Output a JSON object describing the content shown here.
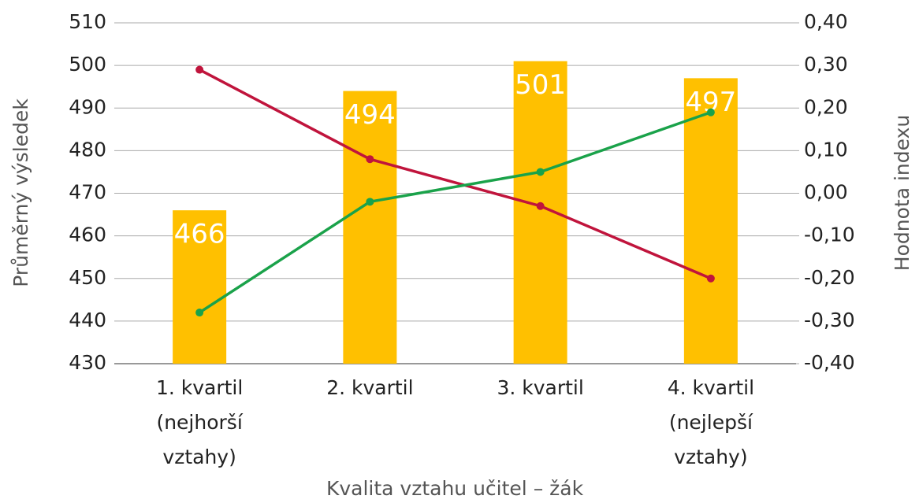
{
  "chart_data": {
    "type": "bar",
    "x_label": "Kvalita vztahu učitel – žák",
    "y_label": "Průměrný výsledek",
    "y2_label": "Hodnota indexu",
    "categories": [
      [
        "1. kvartil",
        "(nejhorší",
        "vztahy)"
      ],
      [
        "2. kvartil"
      ],
      [
        "3. kvartil"
      ],
      [
        "4. kvartil",
        "(nejlepší",
        "vztahy)"
      ]
    ],
    "series": [
      {
        "type": "bar",
        "color": "#ffc000",
        "values": [
          466,
          494,
          501,
          497
        ]
      },
      {
        "type": "line",
        "axis": "y2",
        "color": "#c0143c",
        "values": [
          0.29,
          0.08,
          -0.03,
          -0.2
        ]
      },
      {
        "type": "line",
        "axis": "y2",
        "color": "#1aa24a",
        "values": [
          -0.28,
          -0.02,
          0.05,
          0.19
        ]
      }
    ],
    "ylim": [
      430,
      510
    ],
    "yticks": [
      430,
      440,
      450,
      460,
      470,
      480,
      490,
      500,
      510
    ],
    "y2lim": [
      -0.4,
      0.4
    ],
    "y2ticks": [
      {
        "value": -0.4,
        "label": "-0,40"
      },
      {
        "value": -0.3,
        "label": "-0,30"
      },
      {
        "value": -0.2,
        "label": "-0,20"
      },
      {
        "value": -0.1,
        "label": "-0,10"
      },
      {
        "value": 0,
        "label": "0,00"
      },
      {
        "value": 0.1,
        "label": "0,10"
      },
      {
        "value": 0.2,
        "label": "0,20"
      },
      {
        "value": 0.3,
        "label": "0,30"
      },
      {
        "value": 0.4,
        "label": "0,40"
      }
    ],
    "grid": true
  }
}
